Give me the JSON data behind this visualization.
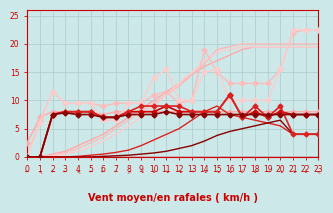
{
  "xlabel": "Vent moyen/en rafales ( km/h )",
  "background_color": "#cce8e8",
  "grid_color": "#aacccc",
  "xlim": [
    0,
    23
  ],
  "ylim": [
    0,
    26
  ],
  "yticks": [
    0,
    5,
    10,
    15,
    20,
    25
  ],
  "xticks": [
    0,
    1,
    2,
    3,
    4,
    5,
    6,
    7,
    8,
    9,
    10,
    11,
    12,
    13,
    14,
    15,
    16,
    17,
    18,
    19,
    20,
    21,
    22,
    23
  ],
  "lines": [
    {
      "comment": "light pink top line - rafales highest, mostly flat ~8 then climbing",
      "x": [
        0,
        1,
        2,
        3,
        4,
        5,
        6,
        7,
        8,
        9,
        10,
        11,
        12,
        13,
        14,
        15,
        16,
        17,
        18,
        19,
        20,
        21,
        22,
        23
      ],
      "y": [
        2.5,
        7,
        8,
        8,
        8,
        8,
        7.5,
        8,
        8,
        8,
        8,
        8,
        8,
        8,
        8,
        8,
        8,
        8,
        8,
        8,
        8,
        8,
        8,
        8
      ],
      "color": "#ffaaaa",
      "lw": 1.0,
      "marker": "D",
      "ms": 2.5,
      "zorder": 3
    },
    {
      "comment": "light pink line upper - climbing from 0 to ~19",
      "x": [
        0,
        1,
        2,
        3,
        4,
        5,
        6,
        7,
        8,
        9,
        10,
        11,
        12,
        13,
        14,
        15,
        16,
        17,
        18,
        19,
        20,
        21,
        22,
        23
      ],
      "y": [
        0,
        0,
        0.5,
        1,
        2,
        3,
        4,
        5.5,
        7,
        8.5,
        10,
        11.5,
        13,
        14.5,
        16,
        17,
        18,
        19,
        19.5,
        19.5,
        19.5,
        19.5,
        19.5,
        19.5
      ],
      "color": "#ffaaaa",
      "lw": 1.0,
      "marker": null,
      "ms": 0,
      "zorder": 2
    },
    {
      "comment": "lighter pink with markers - big triangle peak around x=7-9,15",
      "x": [
        0,
        1,
        2,
        3,
        4,
        5,
        6,
        7,
        8,
        9,
        10,
        11,
        12,
        13,
        14,
        15,
        16,
        17,
        18,
        19,
        20,
        21,
        22,
        23
      ],
      "y": [
        0,
        6.5,
        11.5,
        9.5,
        9.5,
        9.5,
        9,
        9.5,
        9.5,
        9.5,
        11,
        11.5,
        9.5,
        10,
        19,
        15,
        13,
        13,
        13,
        13,
        15.5,
        22,
        22.5,
        22.5
      ],
      "color": "#ffbbbb",
      "lw": 1.0,
      "marker": "D",
      "ms": 2.5,
      "zorder": 3
    },
    {
      "comment": "very light pink no marker - wide triangle envelope upper",
      "x": [
        0,
        1,
        2,
        3,
        4,
        5,
        6,
        7,
        8,
        9,
        10,
        11,
        12,
        13,
        14,
        15,
        16,
        17,
        18,
        19,
        20,
        21,
        22,
        23
      ],
      "y": [
        0,
        0,
        0.3,
        0.8,
        1.5,
        2.5,
        3.5,
        5,
        6.5,
        8,
        9.5,
        11,
        12.5,
        14.5,
        16.5,
        19,
        19.5,
        20,
        20,
        20,
        20,
        20,
        20,
        20
      ],
      "color": "#ffbbbb",
      "lw": 1.0,
      "marker": null,
      "ms": 0,
      "zorder": 2
    },
    {
      "comment": "pale pink wide envelope - triangle from x=1 to x=15 then flat",
      "x": [
        0,
        1,
        2,
        3,
        4,
        5,
        6,
        7,
        8,
        9,
        10,
        11,
        12,
        13,
        14,
        15,
        16,
        17,
        18,
        19,
        20,
        21,
        22,
        23
      ],
      "y": [
        0,
        6,
        11.5,
        9.5,
        9.5,
        9.5,
        6.5,
        6.5,
        9.5,
        9.5,
        14,
        15.5,
        10,
        10,
        15,
        15.5,
        10,
        10,
        10,
        10,
        15.5,
        22.5,
        22.5,
        22.5
      ],
      "color": "#ffcccc",
      "lw": 1.0,
      "marker": "D",
      "ms": 2.5,
      "zorder": 3
    },
    {
      "comment": "pale pink no marker - lower diagonal from 0 to 15",
      "x": [
        0,
        1,
        2,
        3,
        4,
        5,
        6,
        7,
        8,
        9,
        10,
        11,
        12,
        13,
        14,
        15,
        16,
        17,
        18,
        19,
        20,
        21,
        22,
        23
      ],
      "y": [
        0,
        0,
        0.2,
        0.5,
        1,
        1.8,
        2.8,
        4,
        5.5,
        7,
        9,
        11,
        13,
        15,
        17,
        18.5,
        19,
        19.5,
        19.5,
        19.5,
        19.5,
        19.5,
        19.5,
        19.5
      ],
      "color": "#ffcccc",
      "lw": 1.0,
      "marker": null,
      "ms": 0,
      "zorder": 2
    },
    {
      "comment": "dark red with markers - spiky line around y=7-8 then drops",
      "x": [
        0,
        1,
        2,
        3,
        4,
        5,
        6,
        7,
        8,
        9,
        10,
        11,
        12,
        13,
        14,
        15,
        16,
        17,
        18,
        19,
        20,
        21,
        22,
        23
      ],
      "y": [
        0,
        0,
        7.5,
        8,
        8,
        8,
        7,
        7,
        8,
        8,
        8,
        9,
        8,
        8,
        8,
        8,
        11,
        7,
        8,
        7,
        8,
        7.5,
        7.5,
        7.5
      ],
      "color": "#cc0000",
      "lw": 1.2,
      "marker": "D",
      "ms": 2.5,
      "zorder": 5
    },
    {
      "comment": "dark red no marker - flat ~8 then drops",
      "x": [
        0,
        1,
        2,
        3,
        4,
        5,
        6,
        7,
        8,
        9,
        10,
        11,
        12,
        13,
        14,
        15,
        16,
        17,
        18,
        19,
        20,
        21,
        22,
        23
      ],
      "y": [
        0,
        0,
        0,
        0,
        0,
        0,
        0,
        0,
        0,
        0,
        0,
        0,
        0,
        0,
        0,
        0,
        0,
        0,
        0,
        0,
        0,
        0,
        0,
        0
      ],
      "color": "#cc0000",
      "lw": 1.0,
      "marker": null,
      "ms": 0,
      "zorder": 4
    },
    {
      "comment": "medium dark red markers - spiky around 7-11 then drops to 4",
      "x": [
        0,
        1,
        2,
        3,
        4,
        5,
        6,
        7,
        8,
        9,
        10,
        11,
        12,
        13,
        14,
        15,
        16,
        17,
        18,
        19,
        20,
        21,
        22,
        23
      ],
      "y": [
        0,
        0,
        7.5,
        8,
        8,
        8,
        7,
        7,
        8,
        9,
        9,
        9,
        9,
        8,
        8,
        8,
        11,
        7,
        9,
        7,
        9,
        4,
        4,
        4
      ],
      "color": "#dd2222",
      "lw": 1.2,
      "marker": "D",
      "ms": 2.5,
      "zorder": 5
    },
    {
      "comment": "medium dark red no marker - rising then dropping",
      "x": [
        0,
        1,
        2,
        3,
        4,
        5,
        6,
        7,
        8,
        9,
        10,
        11,
        12,
        13,
        14,
        15,
        16,
        17,
        18,
        19,
        20,
        21,
        22,
        23
      ],
      "y": [
        0,
        0,
        0,
        0,
        0.1,
        0.3,
        0.5,
        0.8,
        1.2,
        2,
        3,
        4,
        5,
        6.5,
        8,
        9,
        7.5,
        7,
        6.5,
        6,
        5.5,
        4,
        4,
        4
      ],
      "color": "#dd2222",
      "lw": 1.0,
      "marker": null,
      "ms": 0,
      "zorder": 4
    },
    {
      "comment": "darkest red markers - flat ~8 throughout with spikes",
      "x": [
        0,
        1,
        2,
        3,
        4,
        5,
        6,
        7,
        8,
        9,
        10,
        11,
        12,
        13,
        14,
        15,
        16,
        17,
        18,
        19,
        20,
        21,
        22,
        23
      ],
      "y": [
        0,
        0,
        7.5,
        7.8,
        7.5,
        7.5,
        7,
        7,
        7.5,
        7.5,
        7.5,
        8,
        7.5,
        7.5,
        7.5,
        7.5,
        7.5,
        7.5,
        7.5,
        7.5,
        7.5,
        7.5,
        7.5,
        7.5
      ],
      "color": "#880000",
      "lw": 1.2,
      "marker": "D",
      "ms": 2.5,
      "zorder": 5
    },
    {
      "comment": "darkest red no marker - lowest line near 0 rising slightly",
      "x": [
        0,
        1,
        2,
        3,
        4,
        5,
        6,
        7,
        8,
        9,
        10,
        11,
        12,
        13,
        14,
        15,
        16,
        17,
        18,
        19,
        20,
        21,
        22,
        23
      ],
      "y": [
        0,
        0,
        0,
        0,
        0,
        0,
        0.1,
        0.2,
        0.3,
        0.5,
        0.7,
        1,
        1.5,
        2,
        2.8,
        3.8,
        4.5,
        5,
        5.5,
        6,
        6.5,
        4,
        4,
        4
      ],
      "color": "#880000",
      "lw": 1.0,
      "marker": null,
      "ms": 0,
      "zorder": 4
    }
  ],
  "arrows": [
    "←",
    "↖",
    "←",
    "←",
    "↖",
    "←",
    "←",
    "←",
    "↗",
    "↘",
    "↓",
    "↘",
    "↘",
    "→",
    "↘",
    "↘",
    "↘",
    "↓",
    "↙",
    "→",
    "↘",
    "↘",
    "↓",
    "↖"
  ],
  "xlabel_fontsize": 7,
  "tick_fontsize": 5.5,
  "xlabel_color": "#cc0000",
  "tick_color": "#cc0000",
  "spine_color": "#cc0000"
}
